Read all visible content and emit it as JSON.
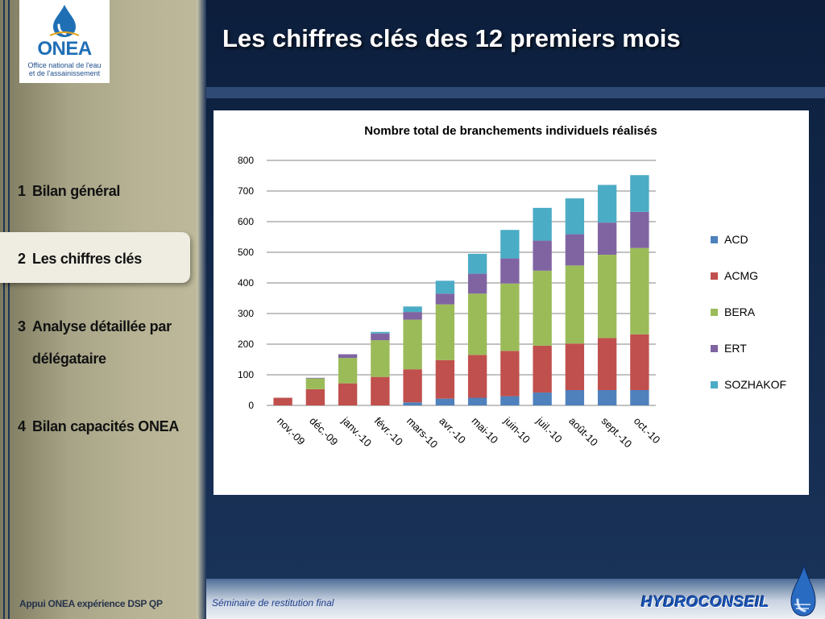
{
  "logo": {
    "name": "ONEA",
    "subtitle": "Office national de l'eau et de l'assainissement"
  },
  "slide": {
    "title": "Les chiffres clés des 12 premiers mois"
  },
  "menu": [
    {
      "num": "1",
      "label": "Bilan général"
    },
    {
      "num": "2",
      "label": "Les chiffres clés"
    },
    {
      "num": "3",
      "label": "Analyse détaillée par",
      "label2": "délégataire"
    },
    {
      "num": "4",
      "label": "Bilan capacités ONEA"
    }
  ],
  "footer": {
    "left": "Appui ONEA expérience DSP QP",
    "center": "Séminaire de restitution final",
    "brand": "HYDROCONSEIL"
  },
  "chart_data": {
    "type": "bar",
    "stacked": true,
    "title": "Nombre total de branchements individuels réalisés",
    "xlabel": "",
    "ylabel": "",
    "ylim": [
      0,
      800
    ],
    "yticks": [
      0,
      100,
      200,
      300,
      400,
      500,
      600,
      700,
      800
    ],
    "grid": true,
    "legend_position": "right",
    "categories": [
      "nov.-09",
      "déc.-09",
      "janv.-10",
      "févr.-10",
      "mars-10",
      "avr.-10",
      "mai-10",
      "juin-10",
      "juil.-10",
      "août-10",
      "sept.-10",
      "oct.-10"
    ],
    "series": [
      {
        "name": "ACD",
        "color": "#4f81bd",
        "values": [
          0,
          0,
          0,
          0,
          10,
          22,
          25,
          30,
          42,
          50,
          50,
          50
        ]
      },
      {
        "name": "ACMG",
        "color": "#c0504d",
        "values": [
          25,
          53,
          72,
          93,
          108,
          126,
          140,
          148,
          153,
          152,
          170,
          182
        ]
      },
      {
        "name": "BERA",
        "color": "#9bbb59",
        "values": [
          0,
          35,
          83,
          120,
          162,
          182,
          200,
          220,
          245,
          255,
          272,
          282
        ]
      },
      {
        "name": "ERT",
        "color": "#8064a2",
        "values": [
          0,
          2,
          12,
          22,
          25,
          35,
          65,
          82,
          98,
          102,
          105,
          118
        ]
      },
      {
        "name": "SOZHAKOF",
        "color": "#4bacc6",
        "values": [
          0,
          0,
          0,
          5,
          18,
          42,
          65,
          93,
          107,
          117,
          123,
          120
        ]
      }
    ]
  }
}
